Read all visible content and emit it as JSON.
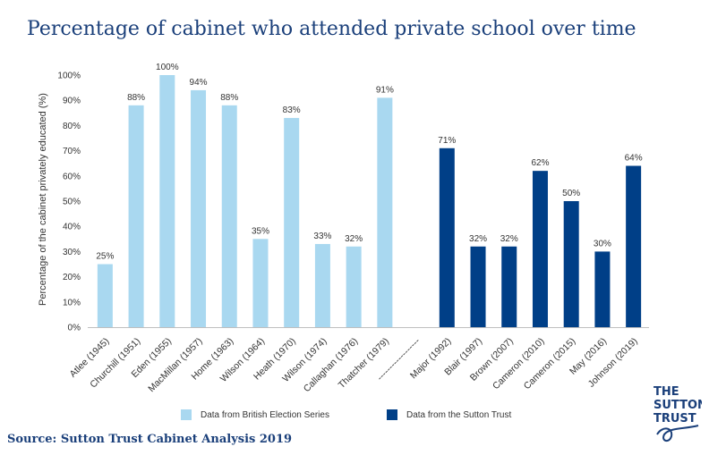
{
  "title": "Percentage of cabinet who attended private school over time",
  "source": "Source: Sutton Trust Cabinet Analysis 2019",
  "legend": {
    "bes_label": "Data from British Election Series",
    "st_label": "Data from the Sutton Trust"
  },
  "logo": {
    "line1": "THE",
    "line2": "SUTTON",
    "line3": "TRUST"
  },
  "colors": {
    "light": "#a9d8f0",
    "dark": "#003f87",
    "title": "#1a3f7a"
  },
  "chart_data": {
    "type": "bar",
    "ylabel": "Percentage of the cabinet privately educated (%)",
    "ylim": [
      0,
      100
    ],
    "yticks": [
      "0%",
      "10%",
      "20%",
      "30%",
      "40%",
      "50%",
      "60%",
      "70%",
      "80%",
      "90%",
      "100%"
    ],
    "grid": false,
    "legend_position": "bottom",
    "categories": [
      "Atlee (1945)",
      "Churchill (1951)",
      "Eden (1955)",
      "MacMillan (1957)",
      "Home (1963)",
      "Wilson (1964)",
      "Heath (1970)",
      "Wilson (1974)",
      "Callaghan (1976)",
      "Thatcher (1979)",
      "------------------",
      "Major (1992)",
      "Blair (1997)",
      "Brown (2007)",
      "Cameron (2010)",
      "Cameron (2015)",
      "May (2016)",
      "Johnson (2019)"
    ],
    "series": [
      {
        "name": "Data from British Election Series",
        "color": "#a9d8f0",
        "values": [
          25,
          88,
          100,
          94,
          88,
          35,
          83,
          33,
          32,
          91,
          null,
          null,
          null,
          null,
          null,
          null,
          null,
          null
        ]
      },
      {
        "name": "Data from the Sutton Trust",
        "color": "#003f87",
        "values": [
          null,
          null,
          null,
          null,
          null,
          null,
          null,
          null,
          null,
          null,
          null,
          71,
          32,
          32,
          62,
          50,
          30,
          64
        ]
      }
    ],
    "data_labels": [
      "25%",
      "88%",
      "100%",
      "94%",
      "88%",
      "35%",
      "83%",
      "33%",
      "32%",
      "91%",
      "",
      "71%",
      "32%",
      "32%",
      "62%",
      "50%",
      "30%",
      "64%"
    ]
  }
}
